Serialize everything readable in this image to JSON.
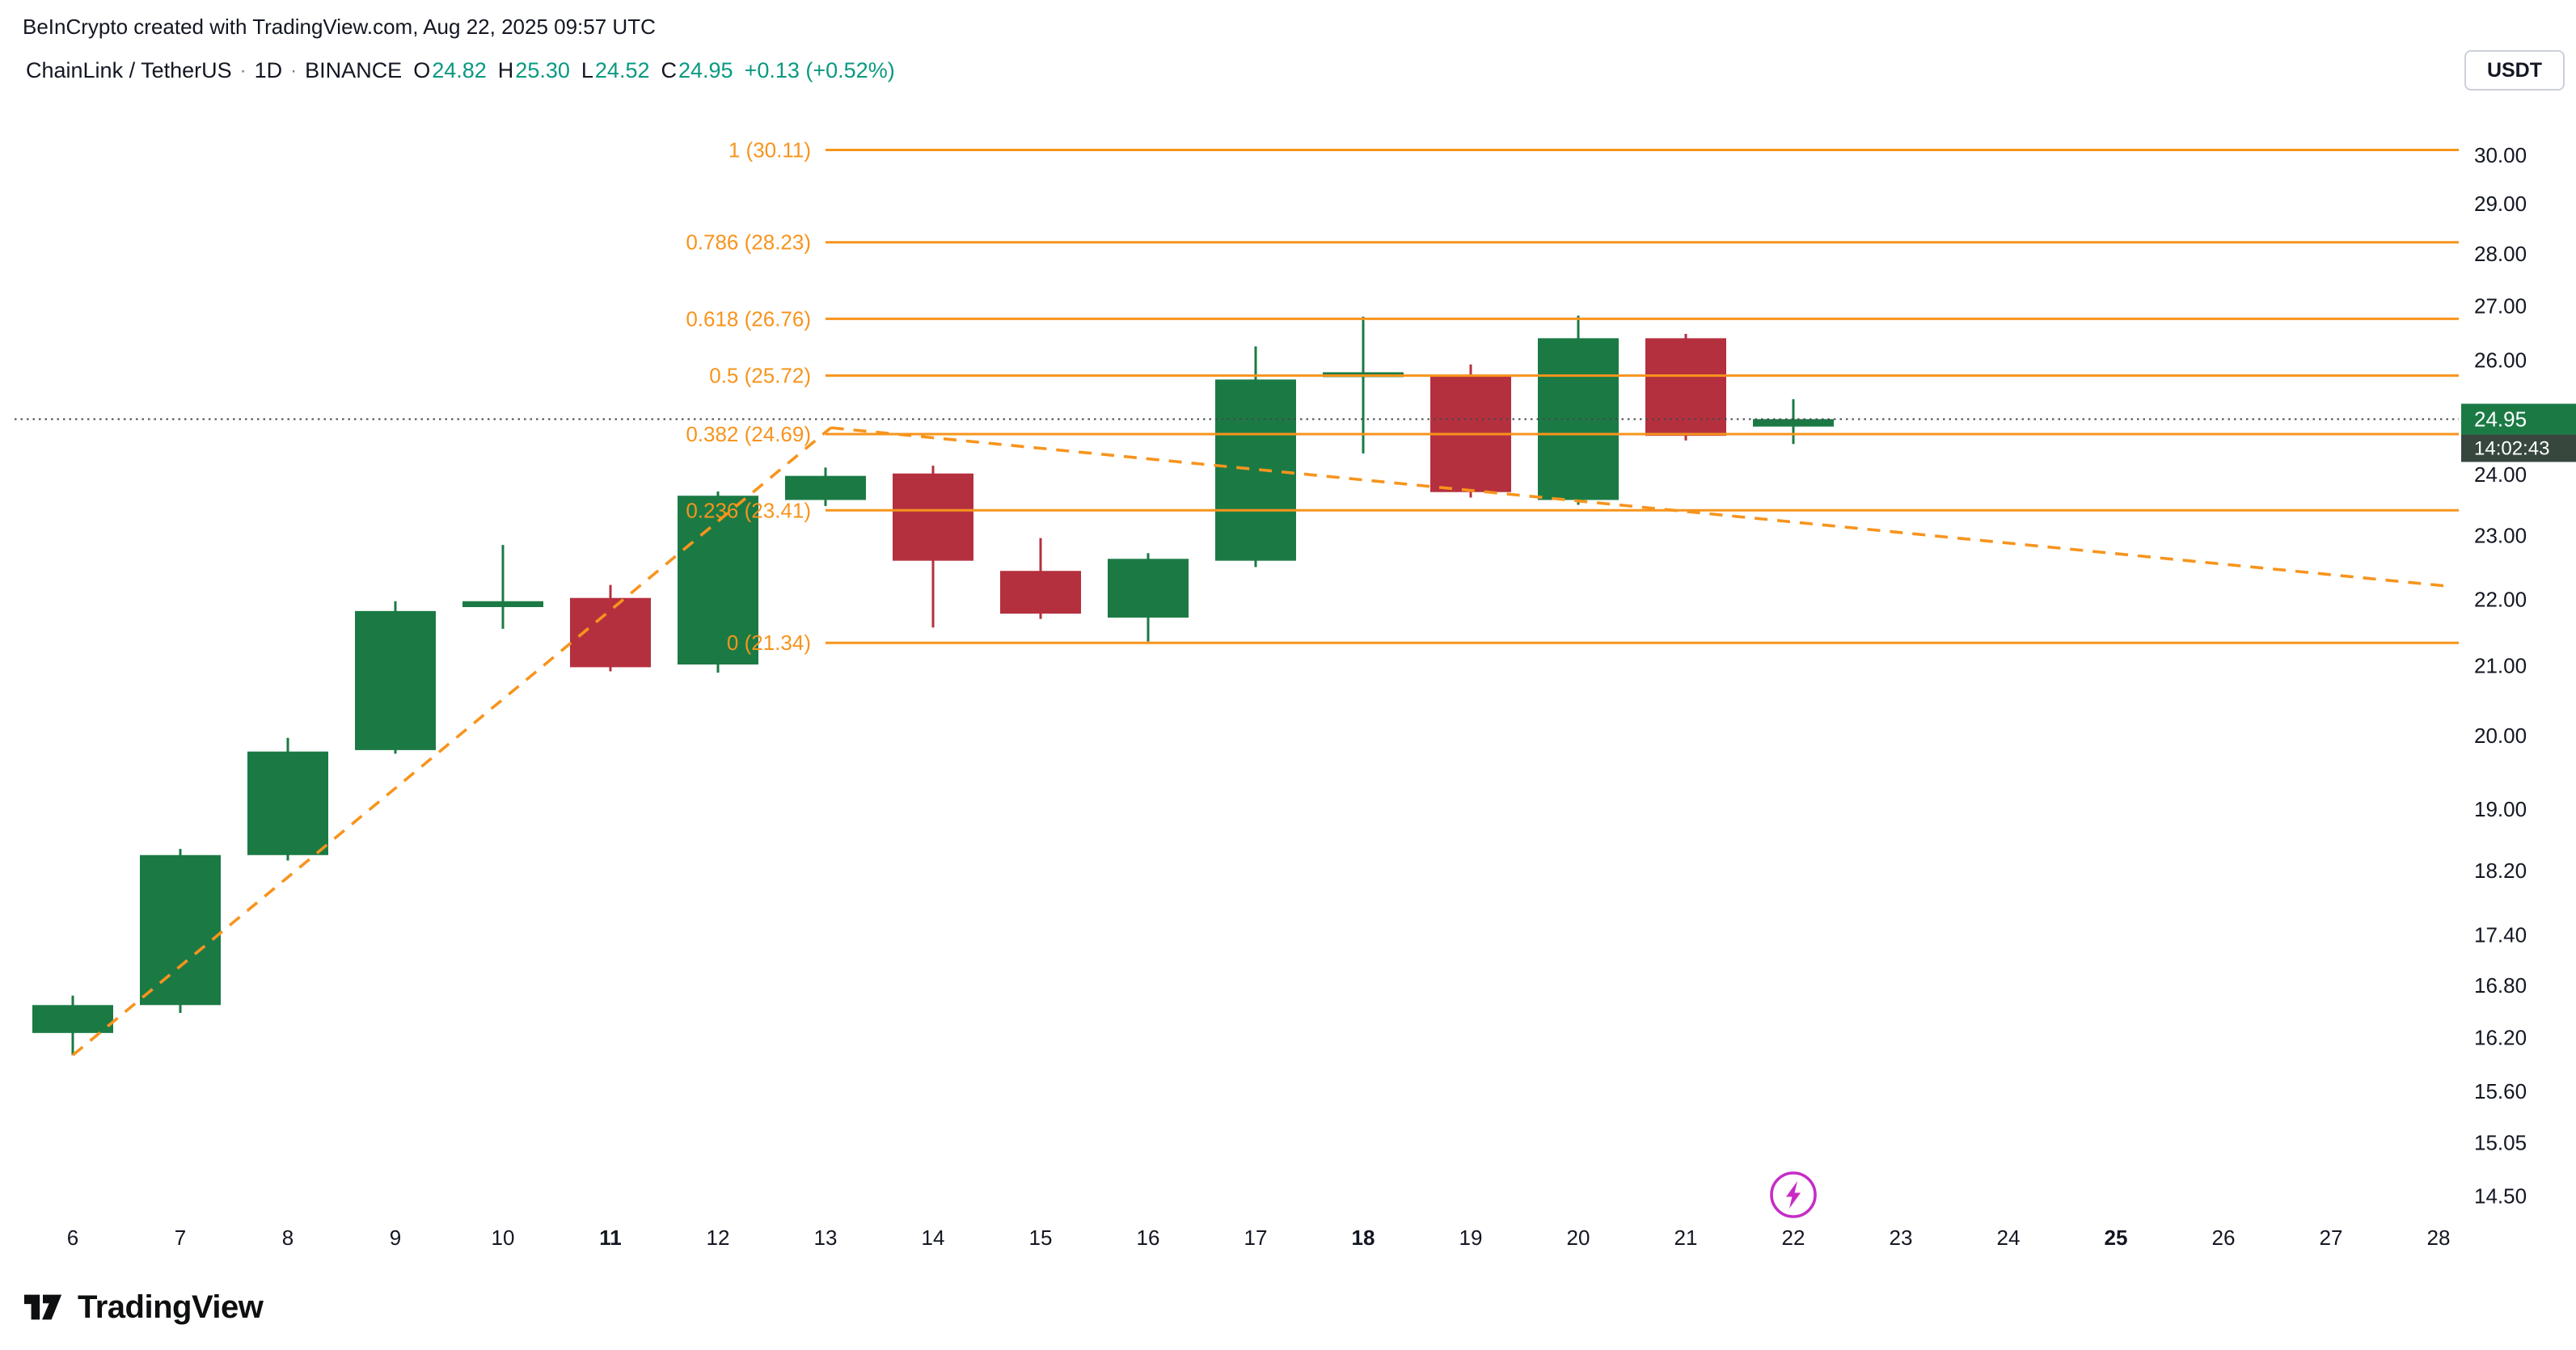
{
  "attribution": "BeInCrypto created with TradingView.com, Aug 22, 2025 09:57 UTC",
  "header": {
    "symbol": "ChainLink / TetherUS",
    "sep": "·",
    "timeframe": "1D",
    "exchange": "BINANCE",
    "ohlc": [
      {
        "label": "O",
        "value": "24.82"
      },
      {
        "label": "H",
        "value": "25.30"
      },
      {
        "label": "L",
        "value": "24.52"
      },
      {
        "label": "C",
        "value": "24.95"
      }
    ],
    "change": "+0.13 (+0.52%)"
  },
  "currency_button": "USDT",
  "logo": {
    "text": "TradingView"
  },
  "colors": {
    "up": "#1b7a44",
    "down": "#b5303e",
    "fib": "#f7941d",
    "trend": "#f7941d",
    "text": "#131722",
    "ohlc_value": "#089981",
    "badge_bg": "#1b7a44",
    "countdown_bg": "#37473e",
    "event": "#c62cc6",
    "price_line": "#44484f"
  },
  "chart_data": {
    "type": "candlestick",
    "title": "ChainLink / TetherUS · 1D · BINANCE",
    "log_scale": true,
    "x_axis": {
      "labels": [
        "6",
        "7",
        "8",
        "9",
        "10",
        "11",
        "12",
        "13",
        "14",
        "15",
        "16",
        "17",
        "18",
        "19",
        "20",
        "21",
        "22",
        "23",
        "24",
        "25",
        "26",
        "27",
        "28"
      ],
      "bold_labels": [
        "11",
        "18",
        "25"
      ]
    },
    "price_axis": {
      "unit": "USDT",
      "ticks": [
        "30.00",
        "29.00",
        "28.00",
        "27.00",
        "26.00",
        "24.00",
        "23.00",
        "22.00",
        "21.00",
        "20.00",
        "19.00",
        "18.20",
        "17.40",
        "16.80",
        "16.20",
        "15.60",
        "15.05",
        "14.50"
      ]
    },
    "candles": [
      {
        "d": 6,
        "o": 16.25,
        "h": 16.68,
        "l": 16.0,
        "c": 16.57
      },
      {
        "d": 7,
        "o": 16.57,
        "h": 18.48,
        "l": 16.48,
        "c": 18.4
      },
      {
        "d": 8,
        "o": 18.4,
        "h": 19.97,
        "l": 18.33,
        "c": 19.78
      },
      {
        "d": 9,
        "o": 19.8,
        "h": 21.97,
        "l": 19.75,
        "c": 21.82
      },
      {
        "d": 10,
        "o": 21.88,
        "h": 22.85,
        "l": 21.55,
        "c": 21.97
      },
      {
        "d": 11,
        "o": 22.02,
        "h": 22.22,
        "l": 20.92,
        "c": 20.98
      },
      {
        "d": 12,
        "o": 21.02,
        "h": 23.72,
        "l": 20.9,
        "c": 23.65
      },
      {
        "d": 13,
        "o": 23.58,
        "h": 24.12,
        "l": 23.48,
        "c": 23.98
      },
      {
        "d": 14,
        "o": 24.02,
        "h": 24.15,
        "l": 21.57,
        "c": 22.6
      },
      {
        "d": 15,
        "o": 22.44,
        "h": 22.96,
        "l": 21.7,
        "c": 21.78
      },
      {
        "d": 16,
        "o": 21.72,
        "h": 22.72,
        "l": 21.36,
        "c": 22.63
      },
      {
        "d": 17,
        "o": 22.6,
        "h": 26.25,
        "l": 22.5,
        "c": 25.65
      },
      {
        "d": 18,
        "o": 25.7,
        "h": 26.8,
        "l": 24.36,
        "c": 25.78
      },
      {
        "d": 19,
        "o": 25.73,
        "h": 25.92,
        "l": 23.62,
        "c": 23.71
      },
      {
        "d": 20,
        "o": 23.58,
        "h": 26.82,
        "l": 23.5,
        "c": 26.4
      },
      {
        "d": 21,
        "o": 26.4,
        "h": 26.48,
        "l": 24.58,
        "c": 24.66
      },
      {
        "d": 22,
        "o": 24.82,
        "h": 25.3,
        "l": 24.52,
        "c": 24.95
      }
    ],
    "fib_levels": [
      {
        "label": "1 (30.11)",
        "price": 30.11
      },
      {
        "label": "0.786 (28.23)",
        "price": 28.23
      },
      {
        "label": "0.618 (26.76)",
        "price": 26.76
      },
      {
        "label": "0.5 (25.72)",
        "price": 25.72
      },
      {
        "label": "0.382 (24.69)",
        "price": 24.69
      },
      {
        "label": "0.236 (23.41)",
        "price": 23.41
      },
      {
        "label": "0 (21.34)",
        "price": 21.34
      }
    ],
    "trendlines": [
      {
        "from": {
          "day": 6,
          "price": 16.0
        },
        "to": {
          "day": 13.05,
          "price": 24.8
        }
      },
      {
        "from": {
          "day": 13.05,
          "price": 24.8
        },
        "to": {
          "day": 28.1,
          "price": 22.2
        }
      }
    ],
    "last_price": {
      "label": "24.95",
      "value": 24.95,
      "countdown": "14:02:43"
    },
    "event_marker": {
      "day": 22,
      "icon": "lightning"
    }
  }
}
